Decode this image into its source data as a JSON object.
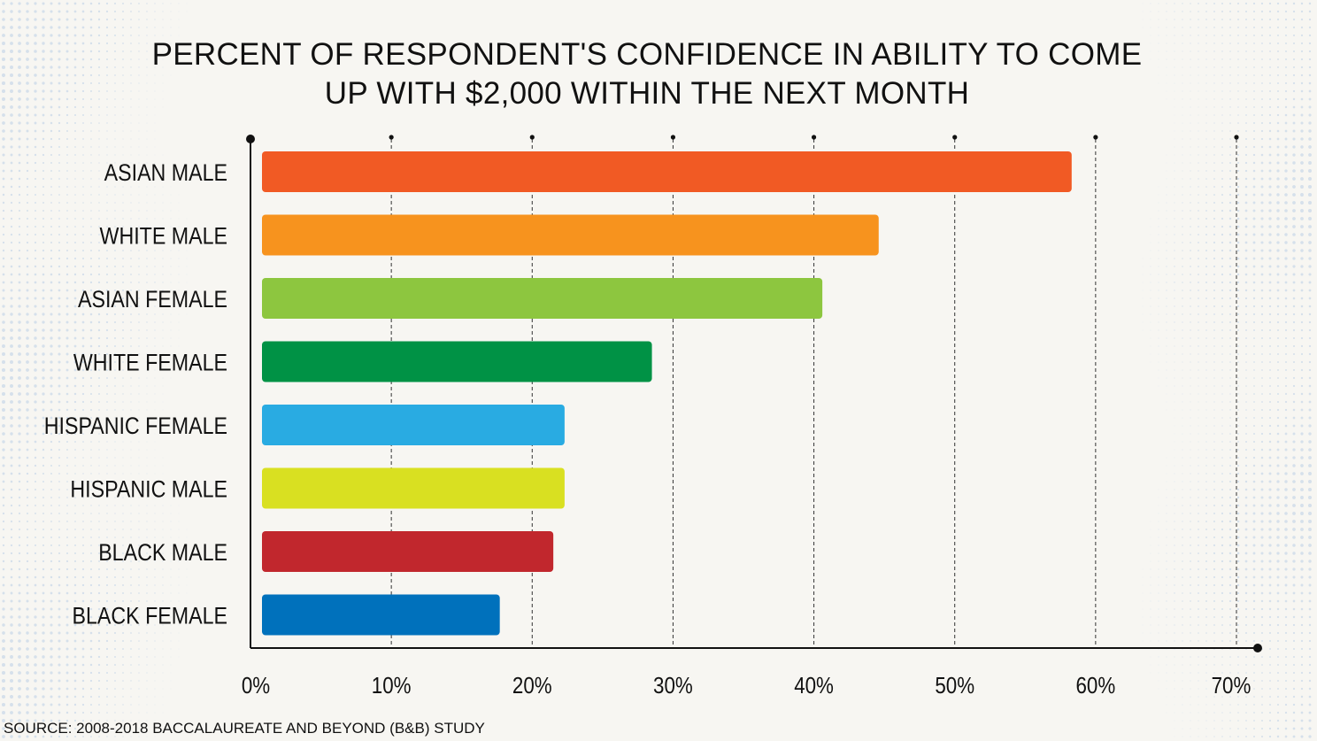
{
  "chart_data": {
    "type": "bar",
    "orientation": "horizontal",
    "title_lines": [
      "PERCENT OF RESPONDENT'S CONFIDENCE IN ABILITY TO COME",
      "UP WITH $2,000 WITHIN THE NEXT MONTH"
    ],
    "categories": [
      "ASIAN MALE",
      "WHITE MALE",
      "ASIAN FEMALE",
      "WHITE FEMALE",
      "HISPANIC FEMALE",
      "HISPANIC MALE",
      "BLACK MALE",
      "BLACK FEMALE"
    ],
    "values": [
      58.3,
      44.6,
      40.6,
      28.5,
      22.3,
      22.3,
      21.5,
      17.7
    ],
    "colors": [
      "#f15a24",
      "#f7931e",
      "#8dc63f",
      "#009245",
      "#29abe2",
      "#d9e021",
      "#c1272d",
      "#0071bc"
    ],
    "xlim": [
      0,
      70
    ],
    "xticks": [
      0,
      10,
      20,
      30,
      40,
      50,
      60,
      70
    ],
    "xtick_labels": [
      "0%",
      "10%",
      "20%",
      "30%",
      "40%",
      "50%",
      "60%",
      "70%"
    ],
    "grid": "vertical-dashed",
    "xlabel": "",
    "ylabel": ""
  },
  "source": "SOURCE: 2008-2018 BACCALAUREATE AND BEYOND (B&B) STUDY",
  "style": {
    "axis_color": "#111111",
    "grid_color": "#333333",
    "background": "#f7f6f2",
    "pattern_color": "#c9d8e8"
  }
}
